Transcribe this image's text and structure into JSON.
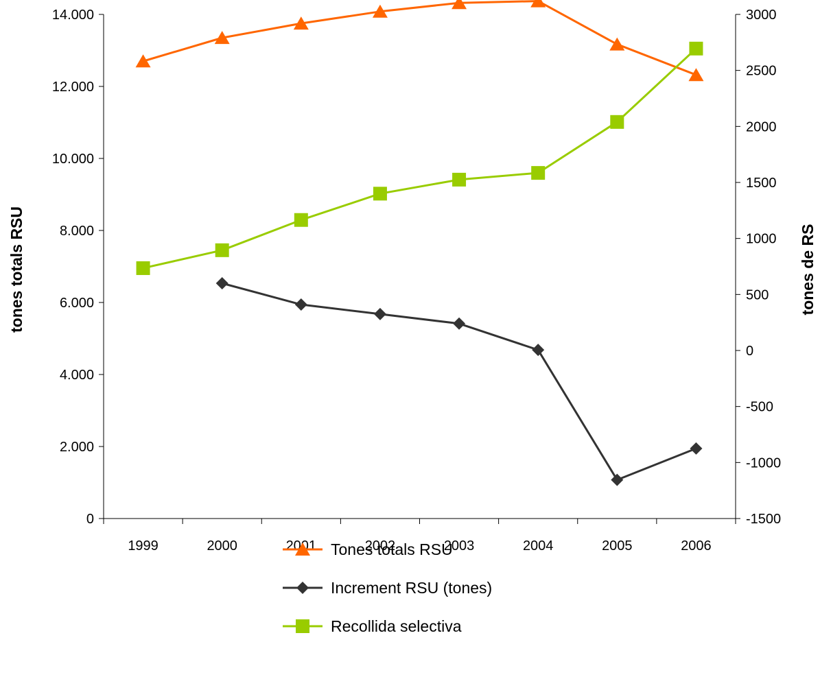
{
  "chart_data": {
    "type": "line",
    "categories": [
      "1999",
      "2000",
      "2001",
      "2002",
      "2003",
      "2004",
      "2005",
      "2006"
    ],
    "y_left": {
      "label": "tones totals RSU",
      "ylim": [
        0,
        14000
      ],
      "ticks": [
        0,
        2000,
        4000,
        6000,
        8000,
        10000,
        12000,
        14000
      ],
      "tick_labels": [
        "0",
        "2.000",
        "4.000",
        "6.000",
        "8.000",
        "10.000",
        "12.000",
        "14.000"
      ]
    },
    "y_right": {
      "label": "tones de RS",
      "ylim": [
        -1500,
        3000
      ],
      "ticks": [
        -1500,
        -1000,
        -500,
        0,
        500,
        1000,
        1500,
        2000,
        2500,
        3000
      ],
      "tick_labels": [
        "-1500",
        "-1000",
        "-500",
        "0",
        "500",
        "1000",
        "1500",
        "2000",
        "2500",
        "3000"
      ]
    },
    "series": [
      {
        "name": "Tones totals RSU",
        "axis": "left",
        "color": "#FF6600",
        "marker": "triangle",
        "values": [
          12700,
          13350,
          13750,
          14080,
          14320,
          14370,
          13170,
          12320
        ]
      },
      {
        "name": "Increment RSU (tones)",
        "axis": "right",
        "color": "#333333",
        "marker": "diamond",
        "values": [
          null,
          600,
          410,
          325,
          240,
          5,
          -1155,
          -875
        ]
      },
      {
        "name": "Recollida selectiva",
        "axis": "right",
        "color": "#99CC00",
        "marker": "square",
        "values": [
          735,
          895,
          1165,
          1400,
          1525,
          1585,
          2040,
          2695
        ]
      }
    ],
    "legend": {
      "position": "bottom"
    },
    "grid": false
  }
}
